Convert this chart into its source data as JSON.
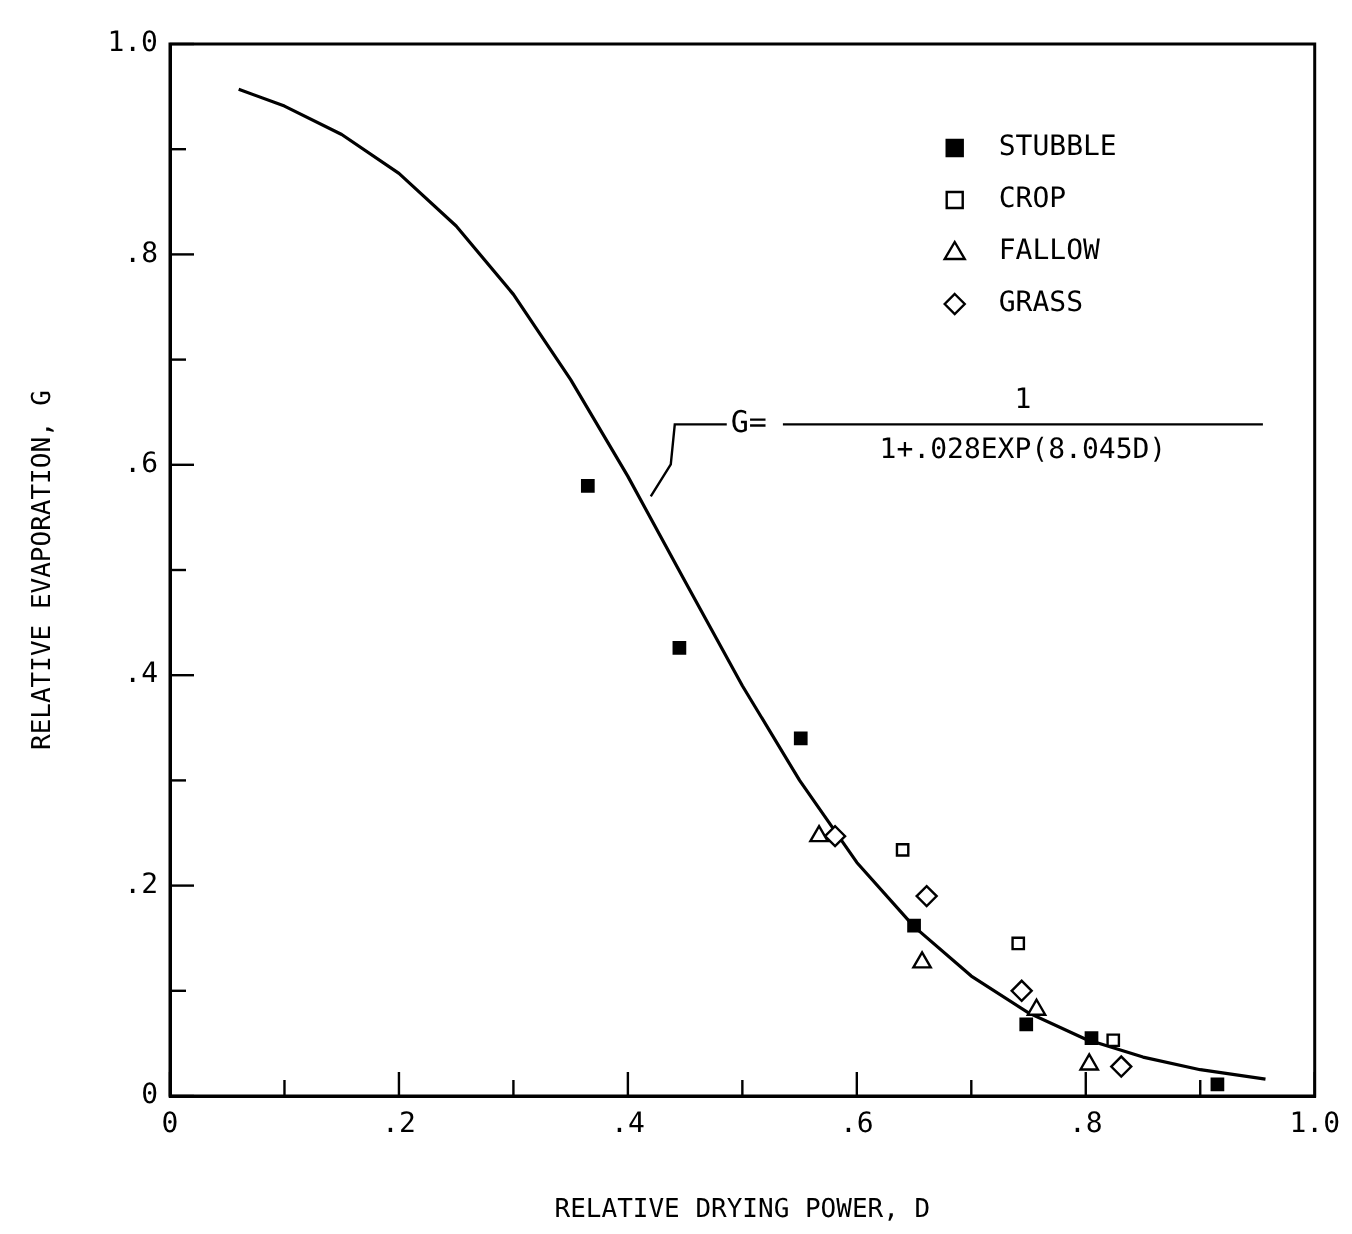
{
  "chart_data": {
    "type": "scatter",
    "xlabel": "RELATIVE DRYING POWER, D",
    "ylabel": "RELATIVE EVAPORATION, G",
    "xlim": [
      0,
      1
    ],
    "ylim": [
      0,
      1
    ],
    "xticks": [
      0,
      {
        "value": 0.1,
        "label": null
      },
      {
        "value": 0.2,
        "label": ".2"
      },
      {
        "value": 0.3,
        "label": null
      },
      {
        "value": 0.4,
        "label": ".4"
      },
      {
        "value": 0.5,
        "label": null
      },
      {
        "value": 0.6,
        "label": ".6"
      },
      {
        "value": 0.7,
        "label": null
      },
      {
        "value": 0.8,
        "label": ".8"
      },
      {
        "value": 0.9,
        "label": null
      },
      {
        "value": 1,
        "label": "1.0"
      }
    ],
    "yticks": [
      0,
      {
        "value": 0.1,
        "label": null
      },
      {
        "value": 0.2,
        "label": ".2"
      },
      {
        "value": 0.3,
        "label": null
      },
      {
        "value": 0.4,
        "label": ".4"
      },
      {
        "value": 0.5,
        "label": null
      },
      {
        "value": 0.6,
        "label": ".6"
      },
      {
        "value": 0.7,
        "label": null
      },
      {
        "value": 0.8,
        "label": ".8"
      },
      {
        "value": 0.9,
        "label": null
      },
      {
        "value": 1,
        "label": "1.0"
      }
    ],
    "grid": false,
    "legend": "top right",
    "series": [
      {
        "name": "STUBBLE",
        "color": "#000000",
        "marker": "square",
        "x": [
          0.365,
          0.445,
          0.551,
          0.65,
          0.748,
          0.805,
          0.915
        ],
        "values": [
          0.58,
          0.426,
          0.34,
          0.162,
          0.068,
          0.055,
          0.011
        ]
      },
      {
        "name": "CROP",
        "color": "#000000",
        "marker": "square",
        "x": [
          0.64,
          0.741,
          0.824
        ],
        "values": [
          0.234,
          0.145,
          0.053
        ]
      },
      {
        "name": "FALLOW",
        "color": "#000000",
        "marker": "triangle",
        "x": [
          0.567,
          0.657,
          0.757,
          0.803
        ],
        "values": [
          0.247,
          0.127,
          0.082,
          0.03
        ]
      },
      {
        "name": "GRASS",
        "color": "#000000",
        "marker": "diamond",
        "x": [
          0.581,
          0.661,
          0.744,
          0.831
        ],
        "values": [
          0.247,
          0.19,
          0.1,
          0.028
        ]
      },
      {
        "type": "line",
        "color": "#000000",
        "marker": "none",
        "x": [
          0.06,
          0.1,
          0.15,
          0.2,
          0.25,
          0.3,
          0.35,
          0.4,
          0.45,
          0.5,
          0.55,
          0.6,
          0.65,
          0.7,
          0.75,
          0.8,
          0.85,
          0.9,
          0.957
        ],
        "values": [
          0.957,
          0.941,
          0.914,
          0.877,
          0.827,
          0.762,
          0.681,
          0.589,
          0.489,
          0.39,
          0.3,
          0.222,
          0.161,
          0.114,
          0.079,
          0.054,
          0.037,
          0.025,
          0.016
        ]
      }
    ],
    "annotations": [
      {
        "text": "G=",
        "x": 0.42,
        "y": 0.57
      },
      "1",
      "1+.028EXP(8.045D)"
    ]
  }
}
